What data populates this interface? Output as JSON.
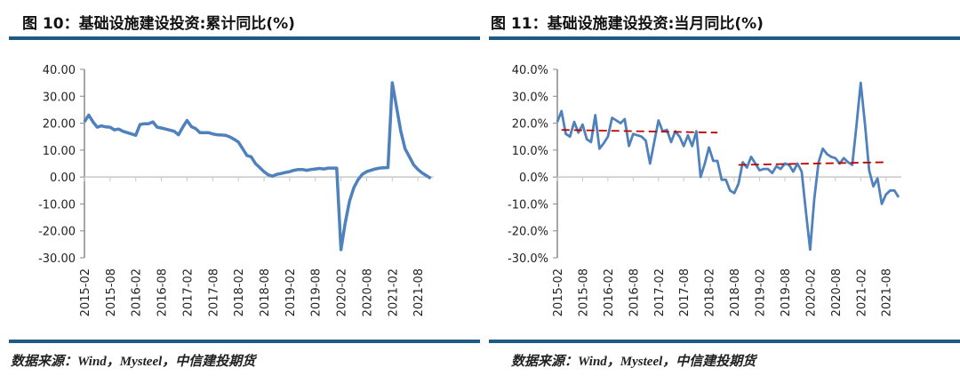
{
  "charts": [
    {
      "title": "图 10：基础设施建设投资:累计同比(%)",
      "source": "数据来源：Wind，Mysteel，中信建投期货"
    },
    {
      "title": "图 11：基础设施建设投资:当月同比(%)",
      "source": "数据来源：Wind，Mysteel，中信建投期货"
    }
  ],
  "colors": {
    "line": "#4f81bd",
    "trend": "#c00000",
    "rule": "#1d5a85",
    "axis": "#888888"
  },
  "chart_data": [
    {
      "type": "line",
      "title": "图 10：基础设施建设投资:累计同比(%)",
      "xlabel": "",
      "ylabel": "",
      "ylim": [
        -30,
        40
      ],
      "yticks": [
        "40.00",
        "30.00",
        "20.00",
        "10.00",
        "0.00",
        "-10.00",
        "-20.00",
        "-30.00"
      ],
      "xticks": [
        "2015-02",
        "2015-08",
        "2016-02",
        "2016-08",
        "2017-02",
        "2017-08",
        "2018-02",
        "2018-08",
        "2019-02",
        "2019-08",
        "2020-02",
        "2020-08",
        "2021-02",
        "2021-08"
      ],
      "x_range": [
        "2015-02",
        "2021-11"
      ],
      "grid": false,
      "series": [
        {
          "values": [
            20.5,
            23,
            20.5,
            18.5,
            19,
            18.6,
            18.5,
            17.5,
            17.8,
            17,
            16.5,
            16,
            15.5,
            19.5,
            19.8,
            19.8,
            20.5,
            18.5,
            18.2,
            17.8,
            17.4,
            17,
            15.7,
            18.5,
            21,
            18.7,
            18,
            16.5,
            16.5,
            16.5,
            16,
            15.7,
            15.6,
            15.5,
            14.9,
            14,
            13,
            10.5,
            8,
            7.5,
            5,
            3.5,
            2,
            0.8,
            0.3,
            1,
            1.3,
            1.7,
            2,
            2.5,
            2.8,
            2.8,
            2.5,
            2.8,
            3,
            3.2,
            3,
            3.3,
            3.3,
            3.3,
            -27,
            -17,
            -9,
            -4,
            -1,
            1,
            2,
            2.5,
            3,
            3.3,
            3.4,
            3.5,
            35,
            26,
            17,
            10.5,
            7.5,
            4.5,
            2.8,
            1.5,
            0.5,
            -0.5
          ]
        }
      ]
    },
    {
      "type": "line",
      "title": "图 11：基础设施建设投资:当月同比(%)",
      "xlabel": "",
      "ylabel": "",
      "ylim": [
        -30,
        40
      ],
      "yticks": [
        "40.0%",
        "30.0%",
        "20.0%",
        "10.0%",
        "0.0%",
        "-10.0%",
        "-20.0%",
        "-30.0%"
      ],
      "xticks": [
        "2015-02",
        "2015-08",
        "2016-02",
        "2016-08",
        "2017-02",
        "2017-08",
        "2018-02",
        "2018-08",
        "2019-02",
        "2019-08",
        "2020-02",
        "2020-08",
        "2021-02",
        "2021-08"
      ],
      "x_range": [
        "2015-02",
        "2021-11"
      ],
      "grid": false,
      "series": [
        {
          "values": [
            20.5,
            24.5,
            16,
            15,
            20.5,
            16.5,
            19.5,
            14,
            13,
            23,
            10.5,
            12.5,
            15,
            22,
            21,
            20,
            21.5,
            11.5,
            16,
            15.5,
            15,
            13.5,
            5,
            13,
            21,
            17,
            17.5,
            13,
            17,
            15,
            11.5,
            15.5,
            11.5,
            17,
            0,
            5,
            11,
            6,
            6,
            -1,
            -1,
            -5,
            -6,
            -2.5,
            5.5,
            3.5,
            7.5,
            5,
            2.5,
            3,
            3,
            1.5,
            4,
            3,
            5,
            4.5,
            2,
            5,
            2,
            -13,
            -27,
            -8,
            5.5,
            10.5,
            8.5,
            7.5,
            7,
            5,
            7,
            5.5,
            4.5,
            19,
            35,
            20,
            2.5,
            -3.5,
            -0.5,
            -10,
            -6.5,
            -5,
            -5,
            -7.5
          ]
        }
      ],
      "trendlines": [
        {
          "from": [
            "2015-03",
            17.5
          ],
          "to": [
            "2018-04",
            16.5
          ],
          "style": "dashed"
        },
        {
          "from": [
            "2018-09",
            4.5
          ],
          "to": [
            "2021-08",
            5.5
          ],
          "style": "dashed"
        }
      ]
    }
  ]
}
